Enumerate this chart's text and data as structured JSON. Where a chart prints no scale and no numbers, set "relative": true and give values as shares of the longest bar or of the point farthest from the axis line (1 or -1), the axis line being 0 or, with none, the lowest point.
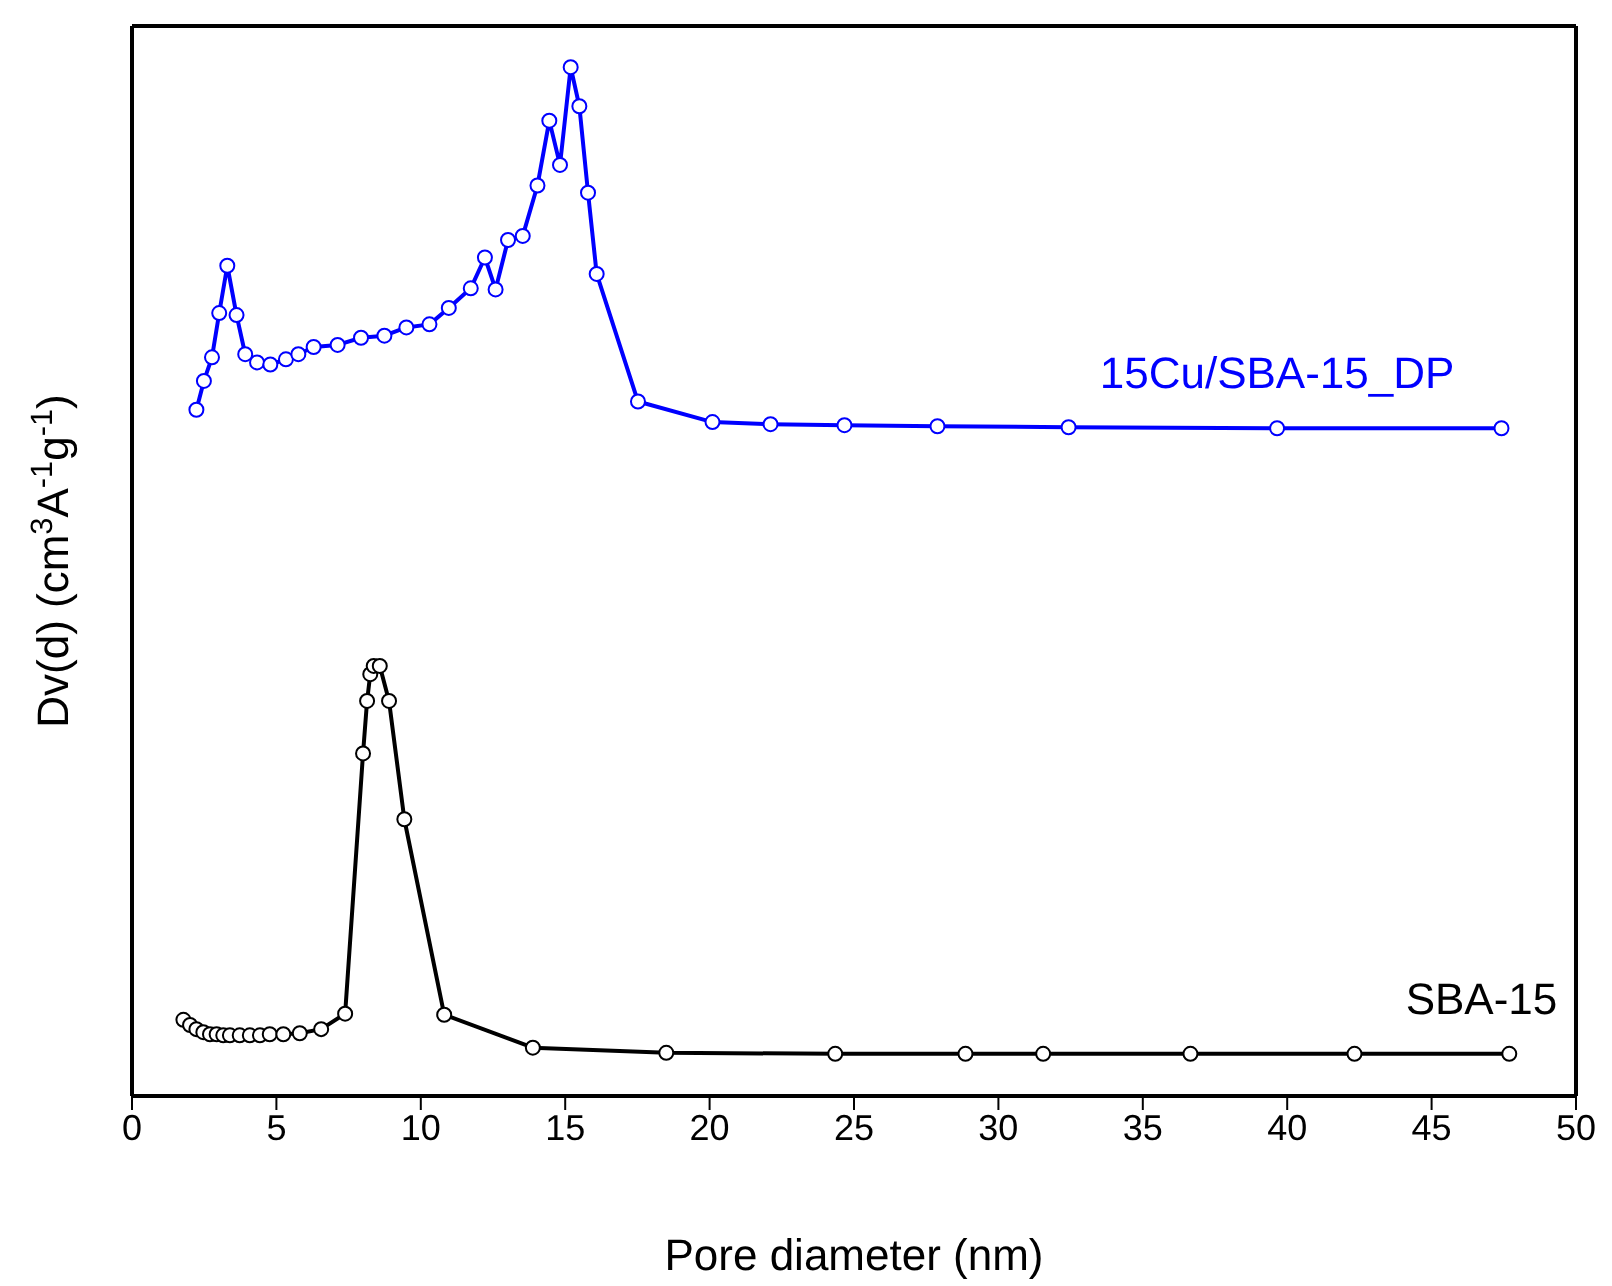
{
  "chart_data": {
    "type": "line",
    "relative": true,
    "xlabel": "Pore diameter (nm)",
    "ylabel": "Dv(d) (cm$^{3}$A$^{-1}$g$^{-1}$)",
    "xlim": [
      0,
      50
    ],
    "xticks": [
      0,
      5,
      10,
      15,
      20,
      25,
      30,
      35,
      40,
      45,
      50
    ],
    "marker": "circle",
    "line_style": "solid",
    "series": [
      {
        "name": "15Cu/SBA-15_DP",
        "color": "#0000ff",
        "x": [
          2.23,
          2.49,
          2.77,
          3.02,
          3.3,
          3.62,
          3.92,
          4.33,
          4.79,
          5.33,
          5.76,
          6.29,
          7.12,
          7.93,
          8.74,
          9.5,
          10.3,
          10.97,
          11.73,
          12.22,
          12.59,
          13.02,
          13.53,
          14.04,
          14.45,
          14.82,
          15.19,
          15.49,
          15.79,
          16.09,
          17.52,
          20.1,
          22.11,
          24.67,
          27.89,
          32.43,
          39.65,
          47.42
        ],
        "values": [
          0.667,
          0.695,
          0.718,
          0.761,
          0.807,
          0.759,
          0.721,
          0.713,
          0.711,
          0.716,
          0.721,
          0.728,
          0.73,
          0.737,
          0.739,
          0.747,
          0.75,
          0.766,
          0.785,
          0.815,
          0.784,
          0.832,
          0.836,
          0.885,
          0.948,
          0.905,
          1,
          0.962,
          0.878,
          0.799,
          0.675,
          0.655,
          0.653,
          0.652,
          0.651,
          0.65,
          0.649,
          0.649
        ]
      },
      {
        "name": "SBA-15",
        "color": "#000000",
        "x": [
          1.78,
          2.01,
          2.23,
          2.47,
          2.7,
          2.93,
          3.16,
          3.39,
          3.73,
          4.08,
          4.43,
          4.77,
          5.24,
          5.81,
          6.55,
          7.38,
          8.0,
          8.14,
          8.25,
          8.37,
          8.58,
          8.9,
          9.43,
          10.81,
          13.88,
          18.5,
          24.35,
          28.86,
          31.55,
          36.65,
          42.33,
          47.69
        ],
        "values": [
          0.074,
          0.069,
          0.065,
          0.062,
          0.06,
          0.06,
          0.059,
          0.059,
          0.059,
          0.059,
          0.059,
          0.06,
          0.06,
          0.061,
          0.065,
          0.08,
          0.333,
          0.384,
          0.41,
          0.418,
          0.418,
          0.384,
          0.269,
          0.079,
          0.047,
          0.042,
          0.041,
          0.041,
          0.041,
          0.041,
          0.041,
          0.041
        ]
      }
    ]
  }
}
